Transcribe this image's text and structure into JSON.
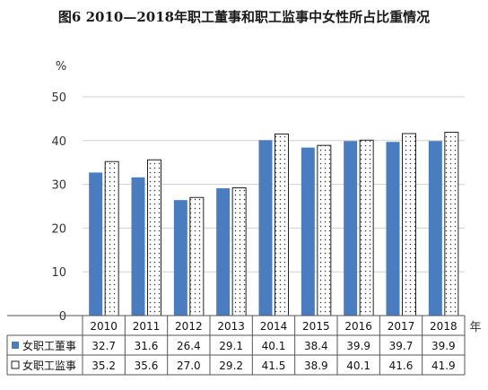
{
  "title": "图6    2010—2018年职工董事和职工监事中女性所占比重情况",
  "chart_data": {
    "type": "bar",
    "title": "图6    2010—2018年职工董事和职工监事中女性所占比重情况",
    "ylabel": "%",
    "xlabel": "年",
    "ylim": [
      0,
      50
    ],
    "yticks": [
      0,
      10,
      20,
      30,
      40,
      50
    ],
    "grid": true,
    "legend": "data-table",
    "categories": [
      "2010",
      "2011",
      "2012",
      "2013",
      "2014",
      "2015",
      "2016",
      "2017",
      "2018"
    ],
    "series": [
      {
        "name": "女职工董事",
        "color": "#4a7dbf",
        "pattern": "solid",
        "values": [
          32.7,
          31.6,
          26.4,
          29.1,
          40.1,
          38.4,
          39.9,
          39.7,
          39.9
        ]
      },
      {
        "name": "女职工监事",
        "color": "#ffffff",
        "pattern": "dotted",
        "values": [
          35.2,
          35.6,
          27.0,
          29.2,
          41.5,
          38.9,
          40.1,
          41.6,
          41.9
        ]
      }
    ],
    "table_values": [
      [
        "32.7",
        "31.6",
        "26.4",
        "29.1",
        "40.1",
        "38.4",
        "39.9",
        "39.7",
        "39.9"
      ],
      [
        "35.2",
        "35.6",
        "27.0",
        "29.2",
        "41.5",
        "38.9",
        "40.1",
        "41.6",
        "41.9"
      ]
    ]
  }
}
